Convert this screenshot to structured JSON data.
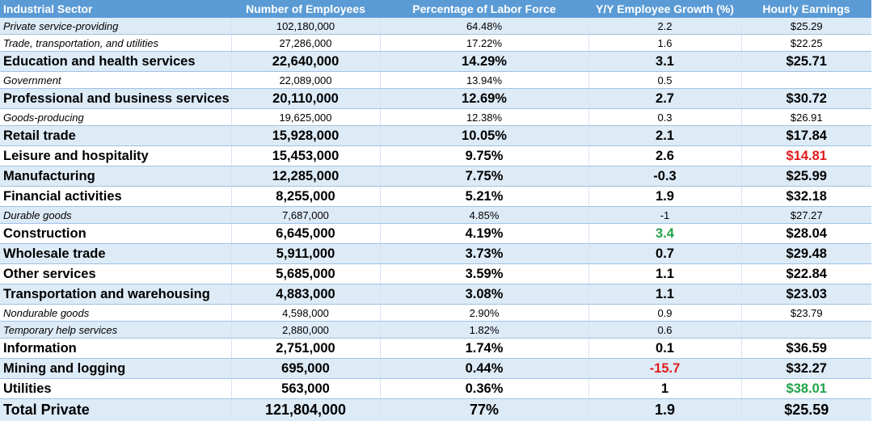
{
  "table": {
    "headers": [
      "Industrial Sector",
      "Number of Employees",
      "Percentage of Labor Force",
      "Y/Y Employee Growth (%)",
      "Hourly Earnings"
    ],
    "rows": [
      {
        "sector": "Private service-providing",
        "employees": "102,180,000",
        "pct": "64.48%",
        "growth": "2.2",
        "earnings": "$25.29",
        "style": "sub"
      },
      {
        "sector": "Trade, transportation, and utilities",
        "employees": "27,286,000",
        "pct": "17.22%",
        "growth": "1.6",
        "earnings": "$22.25",
        "style": "sub"
      },
      {
        "sector": "Education and health services",
        "employees": "22,640,000",
        "pct": "14.29%",
        "growth": "3.1",
        "earnings": "$25.71",
        "style": "main"
      },
      {
        "sector": "Government",
        "employees": "22,089,000",
        "pct": "13.94%",
        "growth": "0.5",
        "earnings": "",
        "style": "sub"
      },
      {
        "sector": "Professional and business services",
        "employees": "20,110,000",
        "pct": "12.69%",
        "growth": "2.7",
        "earnings": "$30.72",
        "style": "main"
      },
      {
        "sector": "Goods-producing",
        "employees": "19,625,000",
        "pct": "12.38%",
        "growth": "0.3",
        "earnings": "$26.91",
        "style": "sub"
      },
      {
        "sector": "Retail trade",
        "employees": "15,928,000",
        "pct": "10.05%",
        "growth": "2.1",
        "earnings": "$17.84",
        "style": "main"
      },
      {
        "sector": "Leisure and hospitality",
        "employees": "15,453,000",
        "pct": "9.75%",
        "growth": "2.6",
        "earnings": "$14.81",
        "style": "main",
        "earnings_color": "red"
      },
      {
        "sector": "Manufacturing",
        "employees": "12,285,000",
        "pct": "7.75%",
        "growth": "-0.3",
        "earnings": "$25.99",
        "style": "main"
      },
      {
        "sector": "Financial activities",
        "employees": "8,255,000",
        "pct": "5.21%",
        "growth": "1.9",
        "earnings": "$32.18",
        "style": "main"
      },
      {
        "sector": "Durable goods",
        "employees": "7,687,000",
        "pct": "4.85%",
        "growth": "-1",
        "earnings": "$27.27",
        "style": "sub"
      },
      {
        "sector": "Construction",
        "employees": "6,645,000",
        "pct": "4.19%",
        "growth": "3.4",
        "earnings": "$28.04",
        "style": "main",
        "growth_color": "green"
      },
      {
        "sector": "Wholesale trade",
        "employees": "5,911,000",
        "pct": "3.73%",
        "growth": "0.7",
        "earnings": "$29.48",
        "style": "main"
      },
      {
        "sector": "Other services",
        "employees": "5,685,000",
        "pct": "3.59%",
        "growth": "1.1",
        "earnings": "$22.84",
        "style": "main"
      },
      {
        "sector": "Transportation and warehousing",
        "employees": "4,883,000",
        "pct": "3.08%",
        "growth": "1.1",
        "earnings": "$23.03",
        "style": "main"
      },
      {
        "sector": "Nondurable goods",
        "employees": "4,598,000",
        "pct": "2.90%",
        "growth": "0.9",
        "earnings": "$23.79",
        "style": "sub"
      },
      {
        "sector": "Temporary help services",
        "employees": "2,880,000",
        "pct": "1.82%",
        "growth": "0.6",
        "earnings": "",
        "style": "sub"
      },
      {
        "sector": "Information",
        "employees": "2,751,000",
        "pct": "1.74%",
        "growth": "0.1",
        "earnings": "$36.59",
        "style": "main"
      },
      {
        "sector": "Mining and logging",
        "employees": "695,000",
        "pct": "0.44%",
        "growth": "-15.7",
        "earnings": "$32.27",
        "style": "main",
        "growth_color": "red"
      },
      {
        "sector": "Utilities",
        "employees": "563,000",
        "pct": "0.36%",
        "growth": "1",
        "earnings": "$38.01",
        "style": "main",
        "earnings_color": "green"
      },
      {
        "sector": "Total Private",
        "employees": "121,804,000",
        "pct": "77%",
        "growth": "1.9",
        "earnings": "$25.59",
        "style": "total"
      }
    ]
  }
}
